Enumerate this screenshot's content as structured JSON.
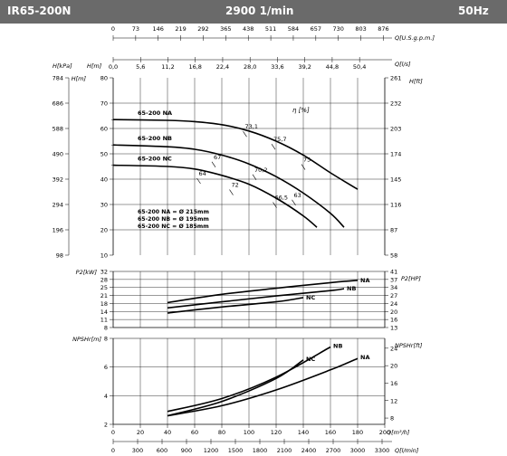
{
  "header": {
    "model": "IR65-200N",
    "speed": "2900 1/min",
    "frequency": "50Hz"
  },
  "colors": {
    "header_bg": "#6a6a6a",
    "header_text": "#ffffff",
    "curve": "#000000",
    "grid": "#000000"
  },
  "chart_data": [
    {
      "type": "line",
      "panel": "head",
      "x_unit": "Q[m³/h]",
      "ylim": [
        10,
        80
      ],
      "left_axis": {
        "label": "H[m]",
        "ticks": [
          "10",
          "20",
          "30",
          "40",
          "50",
          "60",
          "70",
          "80"
        ]
      },
      "left_axis_2": {
        "label": "H[kPa]",
        "ticks": [
          "98",
          "196",
          "294",
          "392",
          "490",
          "588",
          "686",
          "784"
        ]
      },
      "right_axis": {
        "label": "H[ft]",
        "ticks": [
          "58",
          "87",
          "116",
          "145",
          "174",
          "203",
          "232",
          "261"
        ]
      },
      "series": [
        {
          "name": "65-200 NA",
          "x": [
            0,
            40,
            60,
            80,
            100,
            120,
            140,
            160,
            180
          ],
          "y": [
            63.5,
            63.2,
            62.7,
            61.5,
            59.0,
            55.0,
            49.5,
            42.5,
            36.0
          ]
        },
        {
          "name": "65-200 NB",
          "x": [
            0,
            40,
            60,
            80,
            100,
            120,
            140,
            160,
            170
          ],
          "y": [
            53.5,
            52.8,
            51.8,
            49.5,
            46.0,
            41.0,
            34.5,
            26.5,
            21.0
          ]
        },
        {
          "name": "65-200 NC",
          "x": [
            0,
            40,
            60,
            80,
            100,
            120,
            140,
            150
          ],
          "y": [
            45.5,
            45.0,
            44.0,
            41.5,
            38.0,
            32.5,
            25.5,
            21.0
          ]
        }
      ],
      "efficiency_label": "η [%]",
      "efficiency_labels": [
        {
          "text": "73,1",
          "x": 97,
          "y": 61
        },
        {
          "text": "75,7",
          "x": 118,
          "y": 56
        },
        {
          "text": "75",
          "x": 140,
          "y": 48
        },
        {
          "text": "67",
          "x": 74,
          "y": 49
        },
        {
          "text": "70,2",
          "x": 104,
          "y": 44
        },
        {
          "text": "64",
          "x": 63,
          "y": 42.5
        },
        {
          "text": "72",
          "x": 87,
          "y": 38
        },
        {
          "text": "66,5",
          "x": 119,
          "y": 33
        },
        {
          "text": "63",
          "x": 133,
          "y": 34
        }
      ],
      "diameters": [
        "65-200 NA = Ø 215mm",
        "65-200 NB = Ø 195mm",
        "65-200 NC = Ø 185mm"
      ]
    },
    {
      "type": "line",
      "panel": "power",
      "x_unit": "Q[m³/h]",
      "ylim": [
        8,
        32
      ],
      "left_axis": {
        "label": "P2[kW]",
        "ticks": [
          "8",
          "11",
          "14",
          "18",
          "21",
          "25",
          "28",
          "32"
        ]
      },
      "right_axis": {
        "label": "P2[HP]",
        "ticks": [
          "13",
          "16",
          "20",
          "24",
          "27",
          "34",
          "37",
          "41"
        ]
      },
      "series": [
        {
          "name": "NA",
          "x": [
            40,
            80,
            120,
            160,
            180
          ],
          "y": [
            18.7,
            22.2,
            24.8,
            27.2,
            28.2
          ]
        },
        {
          "name": "NB",
          "x": [
            40,
            80,
            120,
            160,
            170
          ],
          "y": [
            16.4,
            19.0,
            21.5,
            23.8,
            24.6
          ]
        },
        {
          "name": "NC",
          "x": [
            40,
            80,
            120,
            140
          ],
          "y": [
            14.2,
            16.8,
            19.0,
            20.8
          ]
        }
      ]
    },
    {
      "type": "line",
      "panel": "npsh",
      "x_unit": "Q[m³/h]",
      "ylim": [
        2,
        8
      ],
      "xlim": [
        0,
        200
      ],
      "left_axis": {
        "label": "NPSHr[m]",
        "ticks": [
          "2",
          "4",
          "6",
          "8"
        ]
      },
      "right_axis": {
        "label": "NPSHr[ft]",
        "ticks": [
          "8",
          "12",
          "16",
          "20",
          "24"
        ]
      },
      "series": [
        {
          "name": "NB",
          "x": [
            40,
            80,
            120,
            160
          ],
          "y": [
            2.9,
            3.8,
            5.3,
            7.4
          ]
        },
        {
          "name": "NC",
          "x": [
            40,
            80,
            120,
            140
          ],
          "y": [
            2.6,
            3.6,
            5.2,
            6.5
          ]
        },
        {
          "name": "NA",
          "x": [
            40,
            80,
            120,
            160,
            180
          ],
          "y": [
            2.6,
            3.3,
            4.4,
            5.8,
            6.6
          ]
        }
      ]
    }
  ],
  "top_axes": {
    "usgpm": {
      "label": "Q[U.S.g.p.m.]",
      "ticks": [
        "0",
        "73",
        "146",
        "219",
        "292",
        "365",
        "438",
        "511",
        "584",
        "657",
        "730",
        "803",
        "876"
      ]
    },
    "ls": {
      "label": "Q[l/s]",
      "ticks": [
        "0,0",
        "5,6",
        "11,2",
        "16,8",
        "22,4",
        "28,0",
        "33,6",
        "39,2",
        "44,8",
        "50,4"
      ]
    }
  },
  "bottom_axes": {
    "m3h": {
      "label": "Q[m³/h]",
      "ticks": [
        "0",
        "20",
        "40",
        "60",
        "80",
        "100",
        "120",
        "140",
        "160",
        "180",
        "200"
      ]
    },
    "lmin": {
      "label": "Q[l/min]",
      "ticks": [
        "0",
        "300",
        "600",
        "900",
        "1200",
        "1500",
        "1800",
        "2100",
        "2400",
        "2700",
        "3000",
        "3300"
      ]
    }
  }
}
